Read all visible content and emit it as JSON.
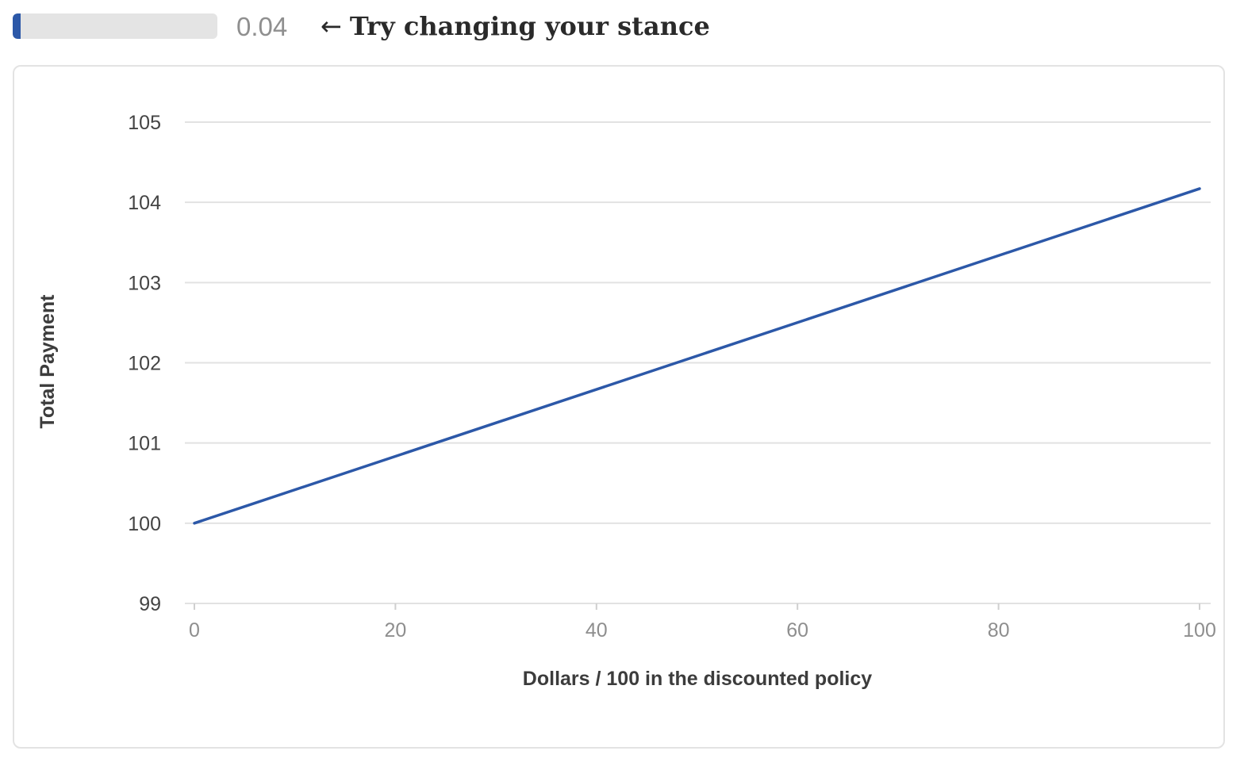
{
  "slider": {
    "value": 0.04,
    "value_label": "0.04",
    "min": 0,
    "max": 1,
    "fill_color": "#2c58a8"
  },
  "hint": {
    "arrow_icon": "left-arrow-icon",
    "text": "Try changing your stance"
  },
  "chart_data": {
    "type": "line",
    "title": "",
    "xlabel": "Dollars / 100 in the discounted policy",
    "ylabel": "Total Payment",
    "xlim": [
      0,
      100
    ],
    "ylim": [
      99,
      105
    ],
    "x_ticks": [
      0,
      20,
      40,
      60,
      80,
      100
    ],
    "y_ticks": [
      99,
      100,
      101,
      102,
      103,
      104,
      105
    ],
    "grid": true,
    "line_color": "#2c58a8",
    "series": [
      {
        "x": [
          0,
          100
        ],
        "y": [
          100,
          104.17
        ]
      }
    ]
  }
}
